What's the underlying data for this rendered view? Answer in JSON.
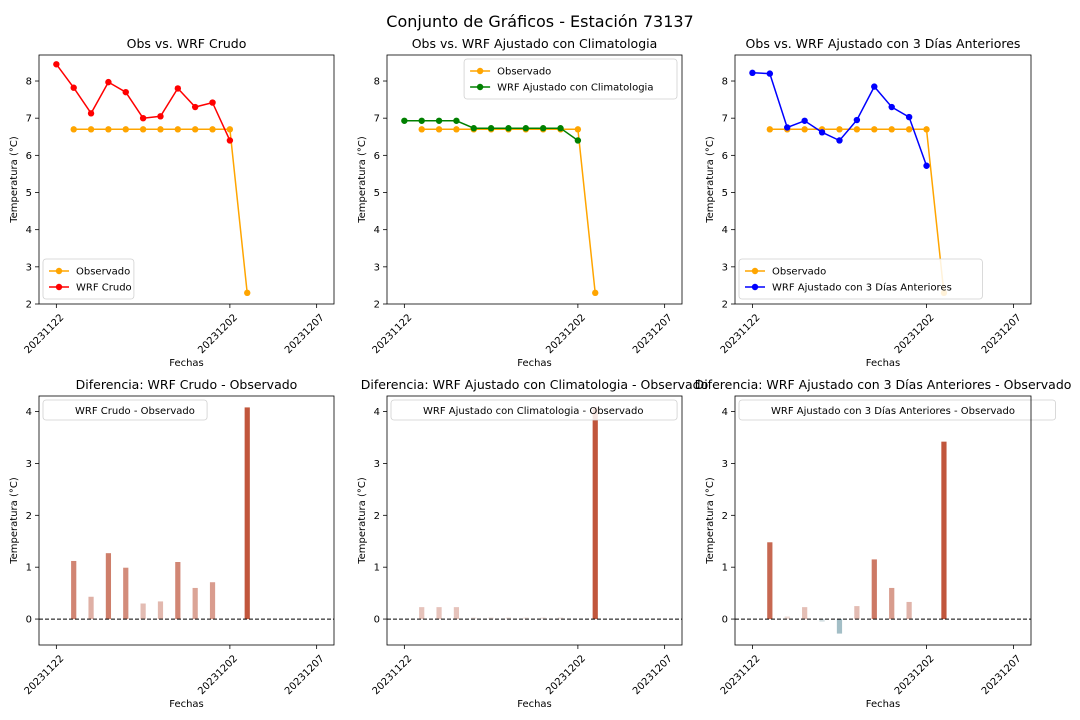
{
  "suptitle": "Conjunto de Gráficos - Estación 73137",
  "chart_data": [
    {
      "type": "line",
      "title": "Obs vs. WRF Crudo",
      "xlabel": "Fechas",
      "ylabel": "Temperatura (°C)",
      "x_ticks": [
        "20231122",
        "20231202",
        "20231207"
      ],
      "x_range": [
        "2023-11-21",
        "2023-12-08"
      ],
      "ylim": [
        2,
        8.7
      ],
      "y_ticks": [
        2,
        3,
        4,
        5,
        6,
        7,
        8
      ],
      "legend_position": "lower-left",
      "series": [
        {
          "name": "Observado",
          "color": "#ffa500",
          "x": [
            "2023-11-23",
            "2023-11-24",
            "2023-11-25",
            "2023-11-26",
            "2023-11-27",
            "2023-11-28",
            "2023-11-29",
            "2023-11-30",
            "2023-12-01",
            "2023-12-02",
            "2023-12-03"
          ],
          "y": [
            6.7,
            6.7,
            6.7,
            6.7,
            6.7,
            6.7,
            6.7,
            6.7,
            6.7,
            6.7,
            2.3
          ]
        },
        {
          "name": "WRF Crudo",
          "color": "#ff0000",
          "x": [
            "2023-11-22",
            "2023-11-23",
            "2023-11-24",
            "2023-11-25",
            "2023-11-26",
            "2023-11-27",
            "2023-11-28",
            "2023-11-29",
            "2023-11-30",
            "2023-12-01",
            "2023-12-02"
          ],
          "y": [
            8.45,
            7.82,
            7.13,
            7.97,
            7.7,
            7.0,
            7.05,
            7.8,
            7.3,
            7.42,
            6.4
          ]
        }
      ]
    },
    {
      "type": "line",
      "title": "Obs vs. WRF Ajustado con Climatologia",
      "xlabel": "Fechas",
      "ylabel": "Temperatura (°C)",
      "x_ticks": [
        "20231122",
        "20231202",
        "20231207"
      ],
      "x_range": [
        "2023-11-21",
        "2023-12-08"
      ],
      "ylim": [
        2,
        8.7
      ],
      "y_ticks": [
        2,
        3,
        4,
        5,
        6,
        7,
        8
      ],
      "legend_position": "top-right",
      "series": [
        {
          "name": "Observado",
          "color": "#ffa500",
          "x": [
            "2023-11-23",
            "2023-11-24",
            "2023-11-25",
            "2023-11-26",
            "2023-11-27",
            "2023-11-28",
            "2023-11-29",
            "2023-11-30",
            "2023-12-01",
            "2023-12-02",
            "2023-12-03"
          ],
          "y": [
            6.7,
            6.7,
            6.7,
            6.7,
            6.7,
            6.7,
            6.7,
            6.7,
            6.7,
            6.7,
            2.3
          ]
        },
        {
          "name": "WRF Ajustado con Climatologia",
          "color": "#008000",
          "x": [
            "2023-11-22",
            "2023-11-23",
            "2023-11-24",
            "2023-11-25",
            "2023-11-26",
            "2023-11-27",
            "2023-11-28",
            "2023-11-29",
            "2023-11-30",
            "2023-12-01",
            "2023-12-02"
          ],
          "y": [
            6.93,
            6.93,
            6.93,
            6.93,
            6.73,
            6.73,
            6.73,
            6.73,
            6.73,
            6.73,
            6.4
          ]
        }
      ]
    },
    {
      "type": "line",
      "title": "Obs vs. WRF Ajustado con 3 Días Anteriores",
      "xlabel": "Fechas",
      "ylabel": "Temperatura (°C)",
      "x_ticks": [
        "20231122",
        "20231202",
        "20231207"
      ],
      "x_range": [
        "2023-11-21",
        "2023-12-08"
      ],
      "ylim": [
        2,
        8.7
      ],
      "y_ticks": [
        2,
        3,
        4,
        5,
        6,
        7,
        8
      ],
      "legend_position": "lower-left",
      "series": [
        {
          "name": "Observado",
          "color": "#ffa500",
          "x": [
            "2023-11-23",
            "2023-11-24",
            "2023-11-25",
            "2023-11-26",
            "2023-11-27",
            "2023-11-28",
            "2023-11-29",
            "2023-11-30",
            "2023-12-01",
            "2023-12-02",
            "2023-12-03"
          ],
          "y": [
            6.7,
            6.7,
            6.7,
            6.7,
            6.7,
            6.7,
            6.7,
            6.7,
            6.7,
            6.7,
            2.3
          ]
        },
        {
          "name": "WRF Ajustado con 3 Días Anteriores",
          "color": "#0000ff",
          "x": [
            "2023-11-22",
            "2023-11-23",
            "2023-11-24",
            "2023-11-25",
            "2023-11-26",
            "2023-11-27",
            "2023-11-28",
            "2023-11-29",
            "2023-11-30",
            "2023-12-01",
            "2023-12-02"
          ],
          "y": [
            8.22,
            8.2,
            6.75,
            6.93,
            6.62,
            6.4,
            6.95,
            7.85,
            7.3,
            7.03,
            5.72
          ]
        }
      ]
    },
    {
      "type": "bar",
      "title": "Diferencia: WRF Crudo - Observado",
      "xlabel": "Fechas",
      "ylabel": "Temperatura (°C)",
      "x_ticks": [
        "20231122",
        "20231202",
        "20231207"
      ],
      "x_range": [
        "2023-11-21",
        "2023-12-08"
      ],
      "ylim": [
        -0.5,
        4.3
      ],
      "y_ticks": [
        0,
        1,
        2,
        3,
        4
      ],
      "legend_position": "top-left",
      "series": [
        {
          "name": "WRF Crudo - Observado",
          "x": [
            "2023-11-23",
            "2023-11-24",
            "2023-11-25",
            "2023-11-26",
            "2023-11-27",
            "2023-11-28",
            "2023-11-29",
            "2023-11-30",
            "2023-12-01",
            "2023-12-02",
            "2023-12-03"
          ],
          "y": [
            1.12,
            0.43,
            1.27,
            0.99,
            0.3,
            0.34,
            1.1,
            0.6,
            0.71,
            0,
            4.08
          ]
        }
      ]
    },
    {
      "type": "bar",
      "title": "Diferencia: WRF Ajustado con Climatologia - Observado",
      "xlabel": "Fechas",
      "ylabel": "Temperatura (°C)",
      "x_ticks": [
        "20231122",
        "20231202",
        "20231207"
      ],
      "x_range": [
        "2023-11-21",
        "2023-12-08"
      ],
      "ylim": [
        -0.5,
        4.3
      ],
      "y_ticks": [
        0,
        1,
        2,
        3,
        4
      ],
      "legend_position": "top-left",
      "series": [
        {
          "name": "WRF Ajustado con Climatologia - Observado",
          "x": [
            "2023-11-23",
            "2023-11-24",
            "2023-11-25",
            "2023-11-26",
            "2023-11-27",
            "2023-11-28",
            "2023-11-29",
            "2023-11-30",
            "2023-12-01",
            "2023-12-02",
            "2023-12-03"
          ],
          "y": [
            0.23,
            0.23,
            0.23,
            0.03,
            0.03,
            0.03,
            0.03,
            0.03,
            0.03,
            0,
            4.08
          ]
        }
      ]
    },
    {
      "type": "bar",
      "title": "Diferencia: WRF Ajustado con 3 Días Anteriores - Observado",
      "xlabel": "Fechas",
      "ylabel": "Temperatura (°C)",
      "x_ticks": [
        "20231122",
        "20231202",
        "20231207"
      ],
      "x_range": [
        "2023-11-21",
        "2023-12-08"
      ],
      "ylim": [
        -0.5,
        4.3
      ],
      "y_ticks": [
        0,
        1,
        2,
        3,
        4
      ],
      "legend_position": "top-left",
      "series": [
        {
          "name": "WRF Ajustado con 3 Días Anteriores - Observado",
          "x": [
            "2023-11-23",
            "2023-11-24",
            "2023-11-25",
            "2023-11-26",
            "2023-11-27",
            "2023-11-28",
            "2023-11-29",
            "2023-11-30",
            "2023-12-01",
            "2023-12-02",
            "2023-12-03"
          ],
          "y": [
            1.48,
            0.05,
            0.23,
            -0.05,
            -0.28,
            0.25,
            1.15,
            0.6,
            0.33,
            0,
            3.42
          ]
        }
      ]
    }
  ]
}
